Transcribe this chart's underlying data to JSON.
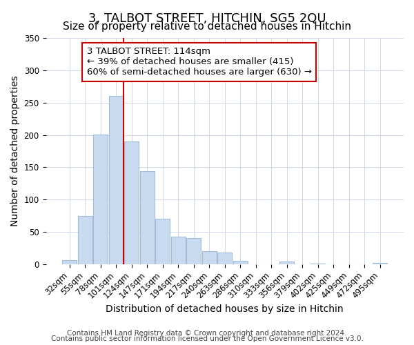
{
  "title": "3, TALBOT STREET, HITCHIN, SG5 2QU",
  "subtitle": "Size of property relative to detached houses in Hitchin",
  "xlabel": "Distribution of detached houses by size in Hitchin",
  "ylabel": "Number of detached properties",
  "bar_labels": [
    "32sqm",
    "55sqm",
    "78sqm",
    "101sqm",
    "124sqm",
    "147sqm",
    "171sqm",
    "194sqm",
    "217sqm",
    "240sqm",
    "263sqm",
    "286sqm",
    "310sqm",
    "333sqm",
    "356sqm",
    "379sqm",
    "402sqm",
    "425sqm",
    "449sqm",
    "472sqm",
    "495sqm"
  ],
  "bar_values": [
    6,
    75,
    201,
    260,
    190,
    144,
    70,
    43,
    40,
    20,
    18,
    5,
    0,
    0,
    4,
    0,
    1,
    0,
    0,
    0,
    2
  ],
  "bar_color": "#c8daf0",
  "bar_edge_color": "#a0bcd8",
  "vline_x_index": 3,
  "vline_color": "#cc0000",
  "annotation_line1": "3 TALBOT STREET: 114sqm",
  "annotation_line2": "← 39% of detached houses are smaller (415)",
  "annotation_line3": "60% of semi-detached houses are larger (630) →",
  "box_edge_color": "#cc0000",
  "ylim": [
    0,
    350
  ],
  "yticks": [
    0,
    50,
    100,
    150,
    200,
    250,
    300,
    350
  ],
  "footer_line1": "Contains HM Land Registry data © Crown copyright and database right 2024.",
  "footer_line2": "Contains public sector information licensed under the Open Government Licence v3.0.",
  "title_fontsize": 13,
  "subtitle_fontsize": 11,
  "axis_label_fontsize": 10,
  "tick_fontsize": 8.5,
  "annotation_fontsize": 9.5,
  "footer_fontsize": 7.5
}
